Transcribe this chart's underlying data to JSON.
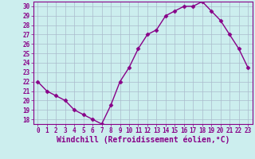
{
  "x": [
    0,
    1,
    2,
    3,
    4,
    5,
    6,
    7,
    8,
    9,
    10,
    11,
    12,
    13,
    14,
    15,
    16,
    17,
    18,
    19,
    20,
    21,
    22,
    23
  ],
  "y": [
    22,
    21,
    20.5,
    20,
    19,
    18.5,
    18,
    17.5,
    19.5,
    22,
    23.5,
    25.5,
    27,
    27.5,
    29,
    29.5,
    30,
    30,
    30.5,
    29.5,
    28.5,
    27,
    25.5,
    23.5
  ],
  "line_color": "#880088",
  "marker": "D",
  "marker_size": 2.5,
  "bg_color": "#cceeee",
  "grid_color": "#aabbcc",
  "xlabel": "Windchill (Refroidissement éolien,°C)",
  "ylabel": "",
  "ylim": [
    17.5,
    30.5
  ],
  "xlim": [
    -0.5,
    23.5
  ],
  "yticks": [
    18,
    19,
    20,
    21,
    22,
    23,
    24,
    25,
    26,
    27,
    28,
    29,
    30
  ],
  "xticks": [
    0,
    1,
    2,
    3,
    4,
    5,
    6,
    7,
    8,
    9,
    10,
    11,
    12,
    13,
    14,
    15,
    16,
    17,
    18,
    19,
    20,
    21,
    22,
    23
  ],
  "tick_label_fontsize": 5.5,
  "xlabel_fontsize": 7,
  "line_width": 1.0
}
